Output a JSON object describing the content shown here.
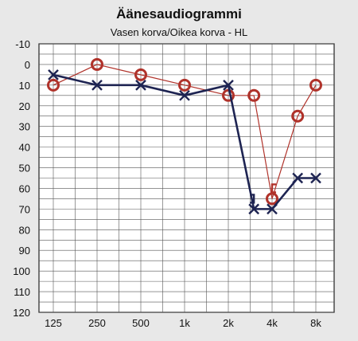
{
  "chart_data": {
    "type": "line",
    "title": "Äänesaudiogrammi",
    "subtitle": "Vasen korva/Oikea korva - HL",
    "x_categories": [
      "125",
      "250",
      "500",
      "1k",
      "2k",
      "4k",
      "8k"
    ],
    "y_ticks": [
      -10,
      0,
      10,
      20,
      30,
      40,
      50,
      60,
      70,
      80,
      90,
      100,
      110,
      120
    ],
    "ylim": [
      -10,
      120
    ],
    "y_inverted": true,
    "grid": true,
    "series": [
      {
        "marker": "circle",
        "color": "#b0322a",
        "points": [
          {
            "x": 125,
            "y": 10
          },
          {
            "x": 250,
            "y": 0
          },
          {
            "x": 500,
            "y": 5
          },
          {
            "x": 1000,
            "y": 10
          },
          {
            "x": 2000,
            "y": 15
          },
          {
            "x": 3000,
            "y": 15
          },
          {
            "x": 4000,
            "y": 65
          },
          {
            "x": 6000,
            "y": 25
          },
          {
            "x": 8000,
            "y": 10
          }
        ]
      },
      {
        "marker": "x",
        "color": "#1e2452",
        "points": [
          {
            "x": 125,
            "y": 5
          },
          {
            "x": 250,
            "y": 10
          },
          {
            "x": 500,
            "y": 10
          },
          {
            "x": 1000,
            "y": 15
          },
          {
            "x": 2000,
            "y": 10
          },
          {
            "x": 3000,
            "y": 70
          },
          {
            "x": 4000,
            "y": 70
          },
          {
            "x": 6000,
            "y": 55
          },
          {
            "x": 8000,
            "y": 55
          }
        ]
      }
    ],
    "bone_markers": [
      {
        "symbol": "]",
        "x": 3000,
        "y": 65,
        "color": "#1e2452"
      },
      {
        "symbol": "[",
        "x": 4000,
        "y": 60,
        "color": "#b0322a"
      }
    ]
  }
}
